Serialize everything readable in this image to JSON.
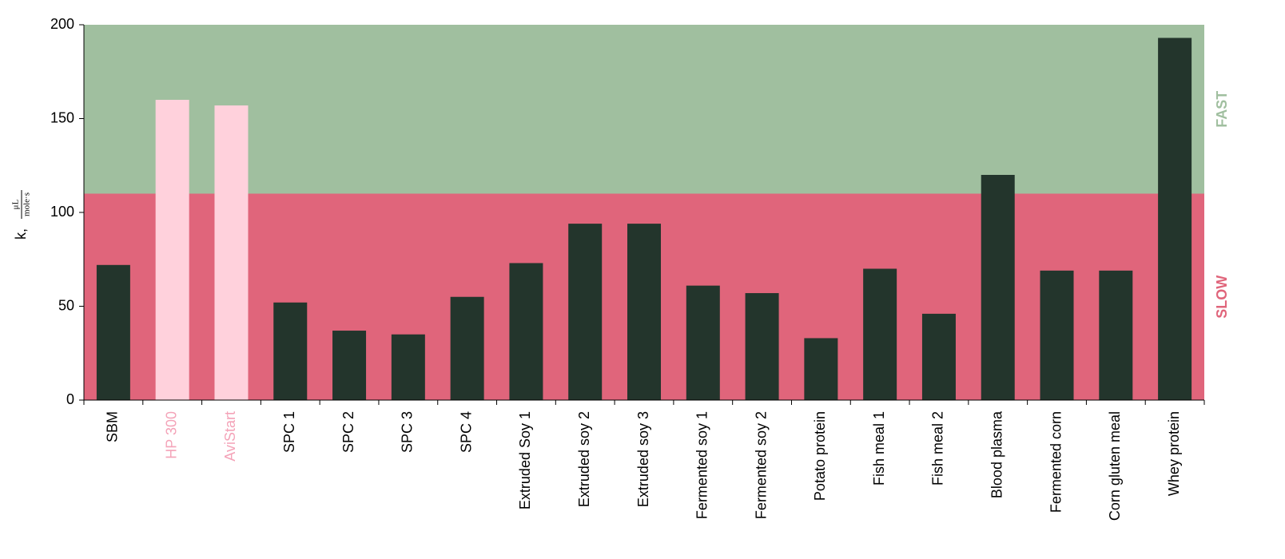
{
  "chart_data": {
    "type": "bar",
    "y_label": {
      "prefix": "k,",
      "numerator": "μL",
      "denominator": "mole·s"
    },
    "categories": [
      "SBM",
      "HP 300",
      "AviStart",
      "SPC 1",
      "SPC 2",
      "SPC 3",
      "SPC 4",
      "Extruded Soy 1",
      "Extruded soy 2",
      "Extruded soy 3",
      "Fermented soy 1",
      "Fermented soy 2",
      "Potato protein",
      "Fish meal 1",
      "Fish meal 2",
      "Blood plasma",
      "Fermented corn",
      "Corn gluten meal",
      "Whey protein"
    ],
    "values": [
      72,
      160,
      157,
      52,
      37,
      35,
      55,
      73,
      94,
      94,
      61,
      57,
      33,
      70,
      46,
      120,
      69,
      69,
      193
    ],
    "colors": [
      "#23352c",
      "#ffd1dc",
      "#ffd1dc",
      "#23352c",
      "#23352c",
      "#23352c",
      "#23352c",
      "#23352c",
      "#23352c",
      "#23352c",
      "#23352c",
      "#23352c",
      "#23352c",
      "#23352c",
      "#23352c",
      "#23352c",
      "#23352c",
      "#23352c",
      "#23352c"
    ],
    "label_colors": [
      "#000000",
      "#f4a3b8",
      "#f4a3b8",
      "#000000",
      "#000000",
      "#000000",
      "#000000",
      "#000000",
      "#000000",
      "#000000",
      "#000000",
      "#000000",
      "#000000",
      "#000000",
      "#000000",
      "#000000",
      "#000000",
      "#000000",
      "#000000"
    ],
    "zones": [
      {
        "label": "FAST",
        "from": 110,
        "to": 200,
        "color": "#a0bf9f"
      },
      {
        "label": "SLOW",
        "from": 0,
        "to": 110,
        "color": "#e0657b"
      }
    ],
    "ylim": [
      0,
      200
    ],
    "yticks": [
      0,
      50,
      100,
      150,
      200
    ]
  }
}
